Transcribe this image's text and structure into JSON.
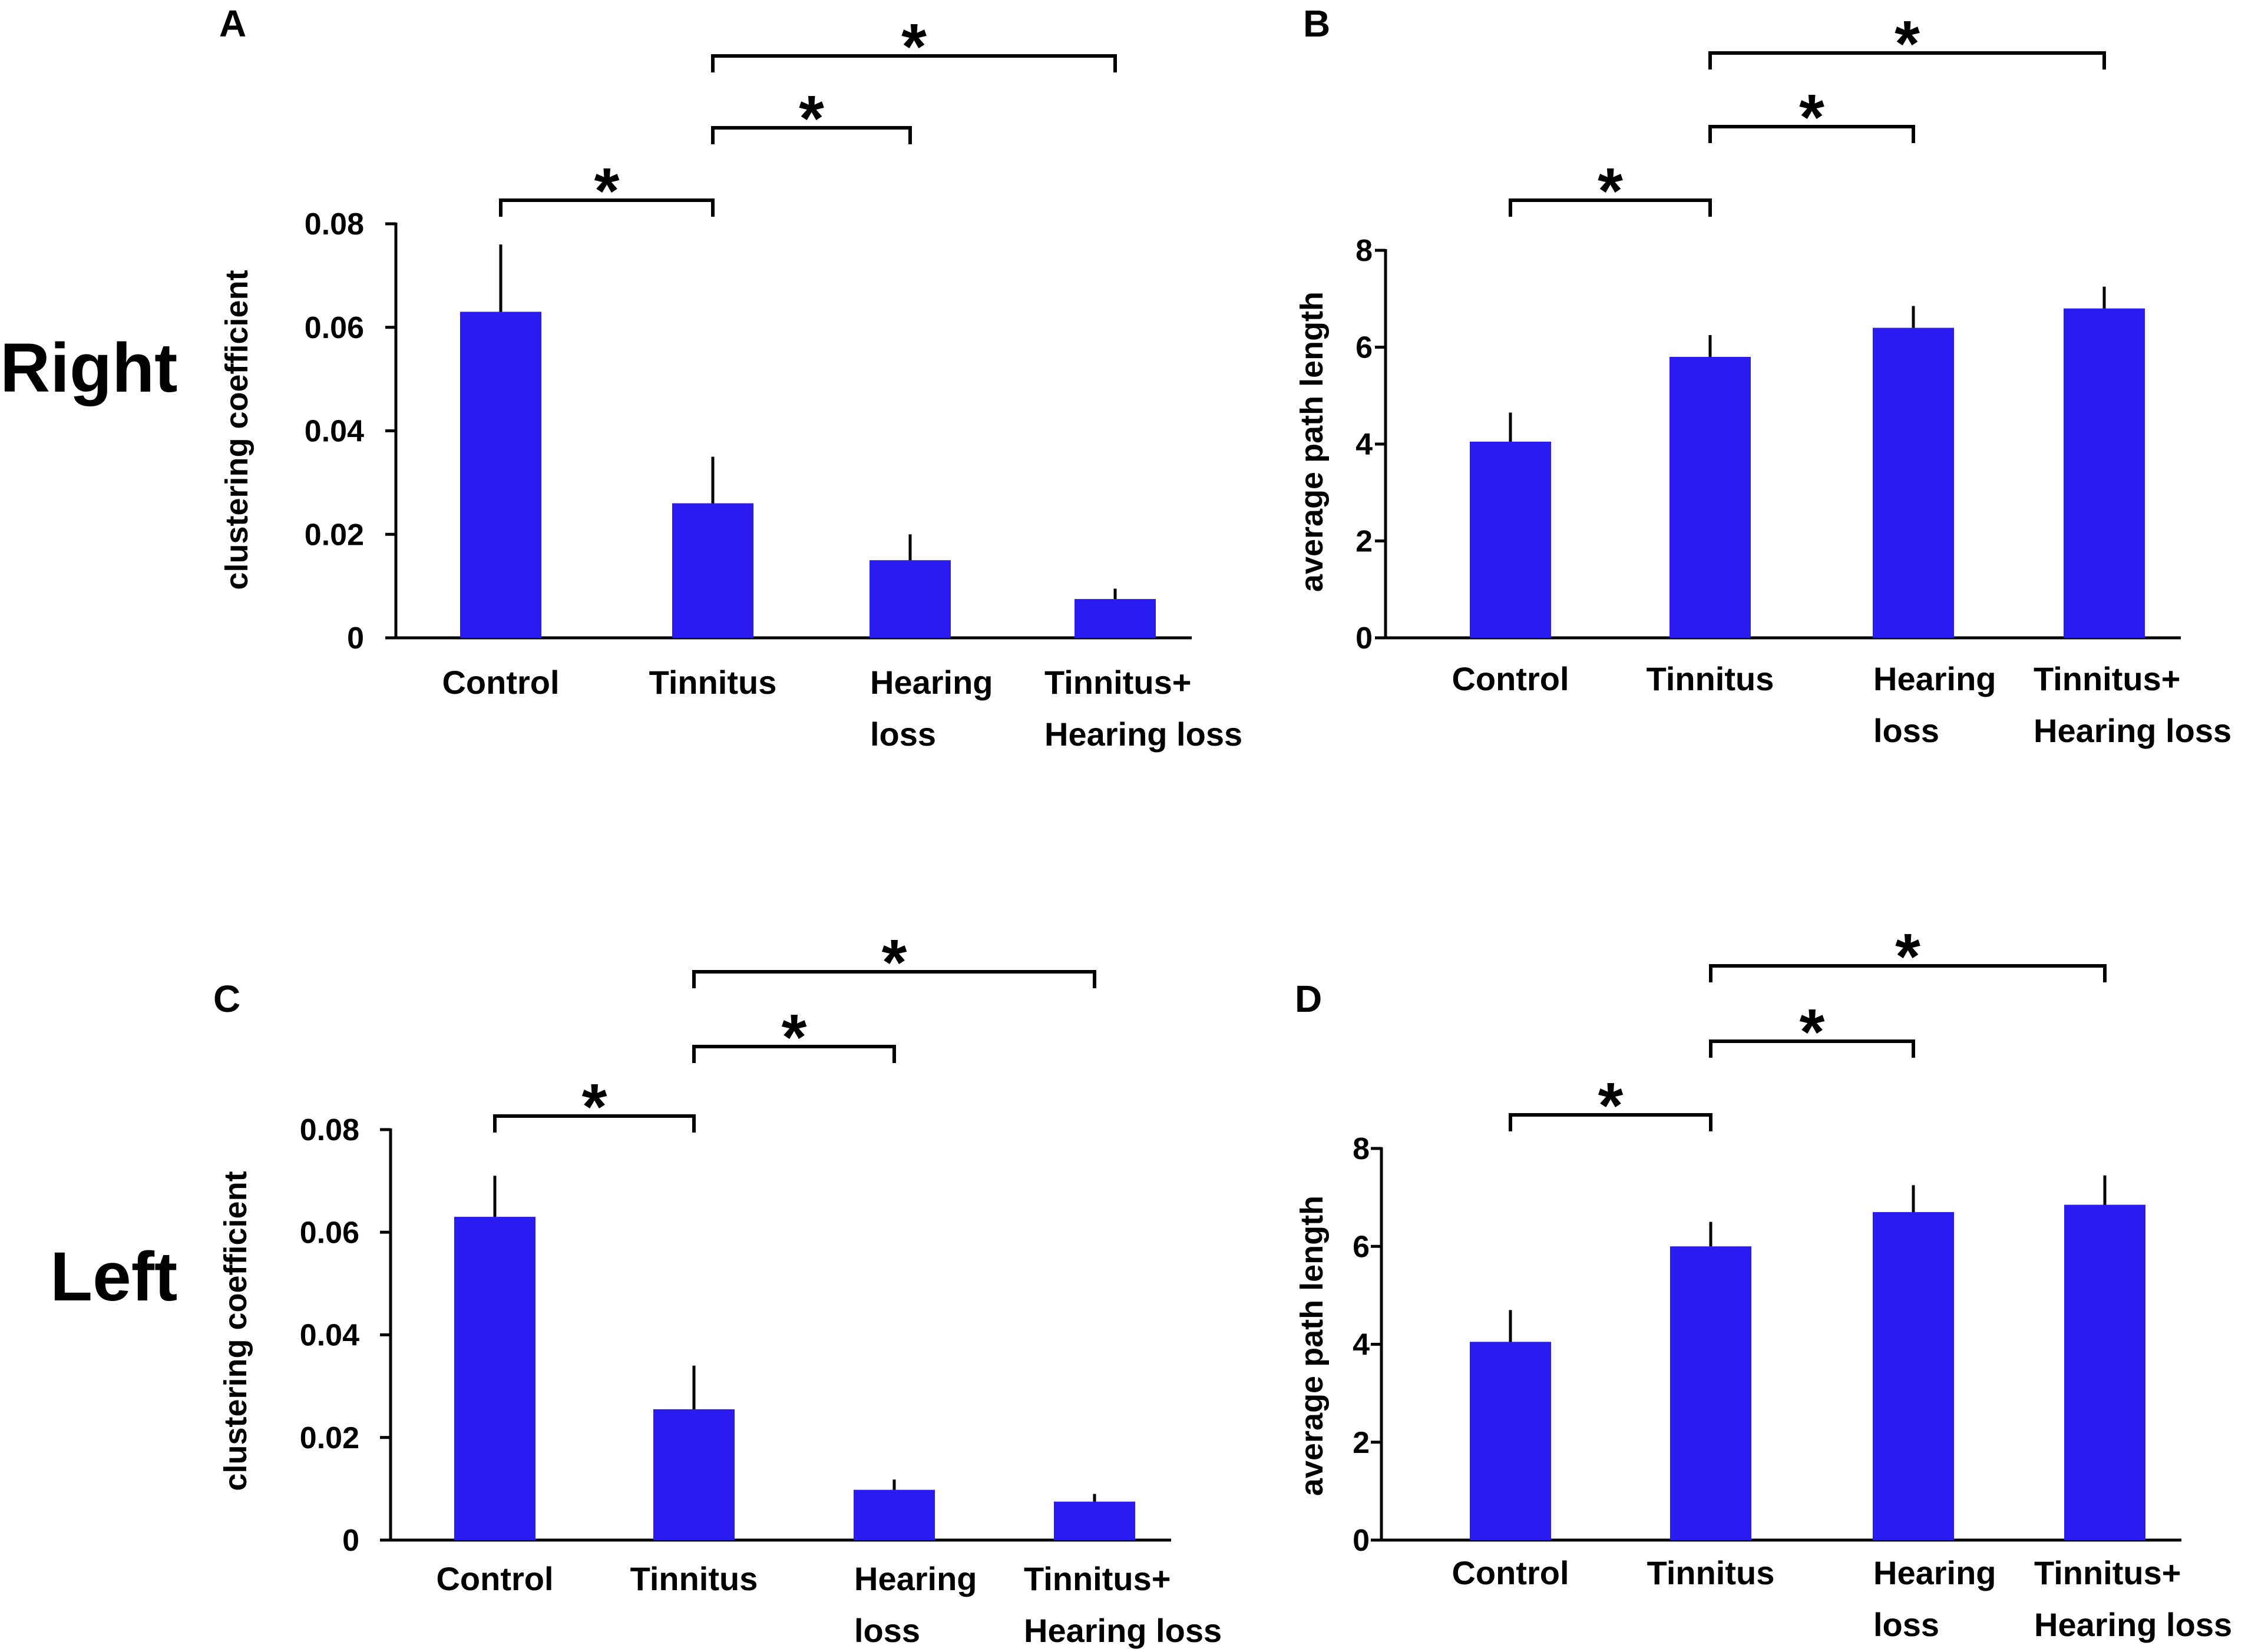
{
  "row_labels": {
    "top": "Right",
    "bottom": "Left"
  },
  "colors": {
    "bar": "#2a1cf0",
    "axis": "#000000"
  },
  "chart_data": [
    {
      "panel": "A",
      "type": "bar",
      "ylabel": "clustering coefficient",
      "ylim": [
        0,
        0.08
      ],
      "yticks": [
        0,
        0.02,
        0.04,
        0.06,
        0.08
      ],
      "ytick_labels": [
        "0",
        "0.02",
        "0.04",
        "0.06",
        "0.08"
      ],
      "categories": [
        [
          "Control"
        ],
        [
          "Tinnitus"
        ],
        [
          "Hearing",
          "loss"
        ],
        [
          "Tinnitus+",
          "Hearing loss"
        ]
      ],
      "values": [
        0.063,
        0.026,
        0.015,
        0.0075
      ],
      "errors": [
        0.013,
        0.009,
        0.005,
        0.002
      ],
      "significance": [
        {
          "from": 0,
          "to": 1,
          "label": "*"
        },
        {
          "from": 1,
          "to": 2,
          "label": "*"
        },
        {
          "from": 1,
          "to": 3,
          "label": "*"
        }
      ]
    },
    {
      "panel": "B",
      "type": "bar",
      "ylabel": "average path length",
      "ylim": [
        0,
        8
      ],
      "yticks": [
        0,
        2,
        4,
        6,
        8
      ],
      "ytick_labels": [
        "0",
        "2",
        "4",
        "6",
        "8"
      ],
      "categories": [
        [
          "Control"
        ],
        [
          "Tinnitus"
        ],
        [
          "Hearing",
          "loss"
        ],
        [
          "Tinnitus+",
          "Hearing loss"
        ]
      ],
      "values": [
        4.05,
        5.8,
        6.4,
        6.8
      ],
      "errors": [
        0.6,
        0.45,
        0.45,
        0.45
      ],
      "significance": [
        {
          "from": 0,
          "to": 1,
          "label": "*"
        },
        {
          "from": 1,
          "to": 2,
          "label": "*"
        },
        {
          "from": 1,
          "to": 3,
          "label": "*"
        }
      ]
    },
    {
      "panel": "C",
      "type": "bar",
      "ylabel": "clustering coefficient",
      "ylim": [
        0,
        0.08
      ],
      "yticks": [
        0,
        0.02,
        0.04,
        0.06,
        0.08
      ],
      "ytick_labels": [
        "0",
        "0.02",
        "0.04",
        "0.06",
        "0.08"
      ],
      "categories": [
        [
          "Control"
        ],
        [
          "Tinnitus"
        ],
        [
          "Hearing",
          "loss"
        ],
        [
          "Tinnitus+",
          "Hearing loss"
        ]
      ],
      "values": [
        0.063,
        0.0255,
        0.0098,
        0.0075
      ],
      "errors": [
        0.008,
        0.0085,
        0.002,
        0.0015
      ],
      "significance": [
        {
          "from": 0,
          "to": 1,
          "label": "*"
        },
        {
          "from": 1,
          "to": 2,
          "label": "*"
        },
        {
          "from": 1,
          "to": 3,
          "label": "*"
        }
      ]
    },
    {
      "panel": "D",
      "type": "bar",
      "ylabel": "average path length",
      "ylim": [
        0,
        8
      ],
      "yticks": [
        0,
        2,
        4,
        6,
        8
      ],
      "ytick_labels": [
        "0",
        "2",
        "4",
        "6",
        "8"
      ],
      "categories": [
        [
          "Control"
        ],
        [
          "Tinnitus"
        ],
        [
          "Hearing",
          "loss"
        ],
        [
          "Tinnitus+",
          "Hearing loss"
        ]
      ],
      "values": [
        4.05,
        6.0,
        6.7,
        6.85
      ],
      "errors": [
        0.65,
        0.5,
        0.55,
        0.6
      ],
      "significance": [
        {
          "from": 0,
          "to": 1,
          "label": "*"
        },
        {
          "from": 1,
          "to": 2,
          "label": "*"
        },
        {
          "from": 1,
          "to": 3,
          "label": "*"
        }
      ]
    }
  ]
}
